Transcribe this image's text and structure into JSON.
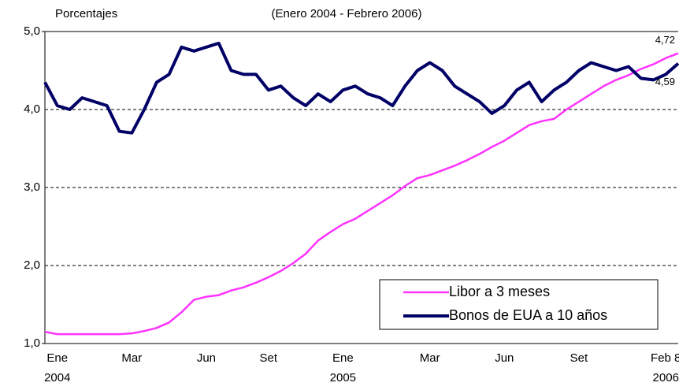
{
  "chart_data": {
    "type": "line",
    "title": "(Enero 2004 - Febrero 2006)",
    "y_label": "Porcentajes",
    "categories": [
      null,
      "Ene",
      null,
      null,
      null,
      null,
      null,
      "Mar",
      null,
      null,
      null,
      null,
      null,
      "Jun",
      null,
      null,
      null,
      null,
      "Set",
      null,
      null,
      null,
      null,
      null,
      "Ene",
      null,
      null,
      null,
      null,
      null,
      null,
      "Mar",
      null,
      null,
      null,
      null,
      null,
      "Jun",
      null,
      null,
      null,
      null,
      null,
      "Set",
      null,
      null,
      null,
      null,
      null,
      null,
      "Feb 8",
      null
    ],
    "x_sublabels": [
      null,
      "2004",
      null,
      null,
      null,
      null,
      null,
      null,
      null,
      null,
      null,
      null,
      null,
      null,
      null,
      null,
      null,
      null,
      null,
      null,
      null,
      null,
      null,
      null,
      "2005",
      null,
      null,
      null,
      null,
      null,
      null,
      null,
      null,
      null,
      null,
      null,
      null,
      null,
      null,
      null,
      null,
      null,
      null,
      null,
      null,
      null,
      null,
      null,
      null,
      null,
      "2006",
      null
    ],
    "ylim": [
      1,
      5
    ],
    "yticks": [
      {
        "value": 1,
        "label": "1,0"
      },
      {
        "value": 2,
        "label": "2,0"
      },
      {
        "value": 3,
        "label": "3,0"
      },
      {
        "value": 4,
        "label": "4,0"
      },
      {
        "value": 5,
        "label": "5,0"
      }
    ],
    "grid": true,
    "legend": "lower right",
    "series": [
      {
        "name": "Libor a 3 meses",
        "color": "#ff33ff",
        "last_label": "4,72",
        "values": [
          1.15,
          1.12,
          1.12,
          1.12,
          1.12,
          1.12,
          1.12,
          1.13,
          1.16,
          1.2,
          1.27,
          1.4,
          1.56,
          1.6,
          1.62,
          1.68,
          1.72,
          1.78,
          1.85,
          1.93,
          2.03,
          2.15,
          2.32,
          2.43,
          2.53,
          2.6,
          2.7,
          2.8,
          2.9,
          3.02,
          3.12,
          3.16,
          3.22,
          3.28,
          3.35,
          3.43,
          3.52,
          3.6,
          3.7,
          3.8,
          3.85,
          3.88,
          4.0,
          4.1,
          4.2,
          4.3,
          4.38,
          4.44,
          4.52,
          4.58,
          4.66,
          4.72
        ]
      },
      {
        "name": "Bonos de EUA a 10 años",
        "color": "#000066",
        "last_label": "4,59",
        "values": [
          4.35,
          4.05,
          4.0,
          4.15,
          4.1,
          4.05,
          3.72,
          3.7,
          4.0,
          4.35,
          4.45,
          4.8,
          4.75,
          4.8,
          4.85,
          4.5,
          4.45,
          4.45,
          4.25,
          4.3,
          4.15,
          4.05,
          4.2,
          4.1,
          4.25,
          4.3,
          4.2,
          4.15,
          4.05,
          4.3,
          4.5,
          4.6,
          4.5,
          4.3,
          4.2,
          4.1,
          3.95,
          4.05,
          4.25,
          4.35,
          4.1,
          4.25,
          4.35,
          4.5,
          4.6,
          4.55,
          4.5,
          4.55,
          4.4,
          4.38,
          4.45,
          4.59
        ]
      }
    ]
  }
}
